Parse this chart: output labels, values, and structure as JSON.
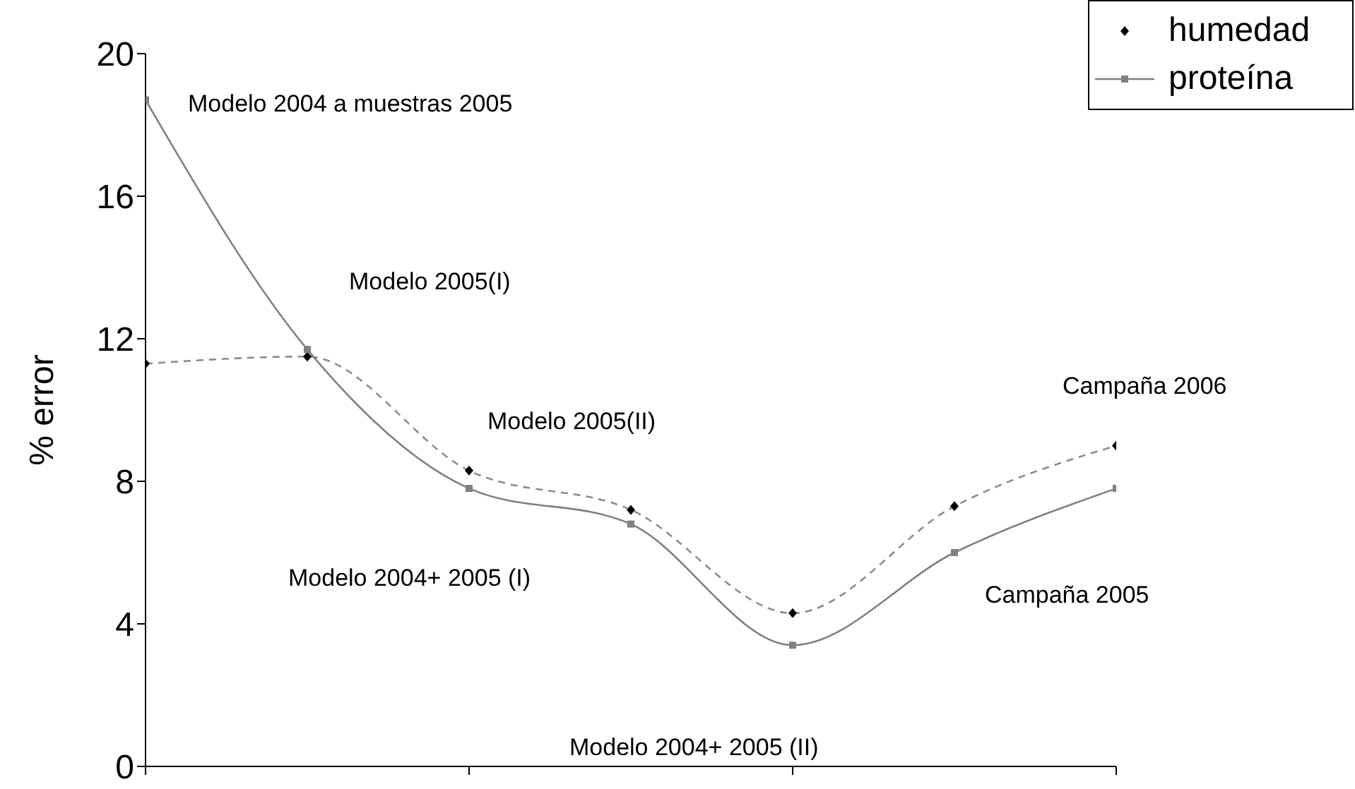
{
  "chart_data": {
    "type": "line",
    "ylabel": "% error",
    "categories": [
      null,
      null,
      null,
      null,
      null,
      null,
      null
    ],
    "ylim": [
      0,
      20
    ],
    "yticks": [
      0,
      4,
      8,
      12,
      16,
      20
    ],
    "tick_labels": "y",
    "legend": "top right",
    "series": [
      {
        "name": "humedad",
        "color": "#000000",
        "marker": "diamond",
        "line_style": "dashed",
        "values": [
          11.3,
          11.5,
          8.3,
          7.2,
          4.3,
          7.3,
          9.0
        ]
      },
      {
        "name": "proteína",
        "color": "#808080",
        "marker": "square",
        "line_style": "solid",
        "values": [
          18.7,
          11.7,
          7.8,
          6.8,
          3.4,
          6.0,
          7.8
        ]
      }
    ],
    "annotations": [
      "Modelo 2004 a muestras 2005",
      "Modelo 2005(I)",
      "Modelo 2005(II)",
      "Modelo 2004+ 2005 (I)",
      "Modelo 2004+ 2005 (II)",
      "Campaña 2005",
      "Campaña 2006"
    ]
  }
}
